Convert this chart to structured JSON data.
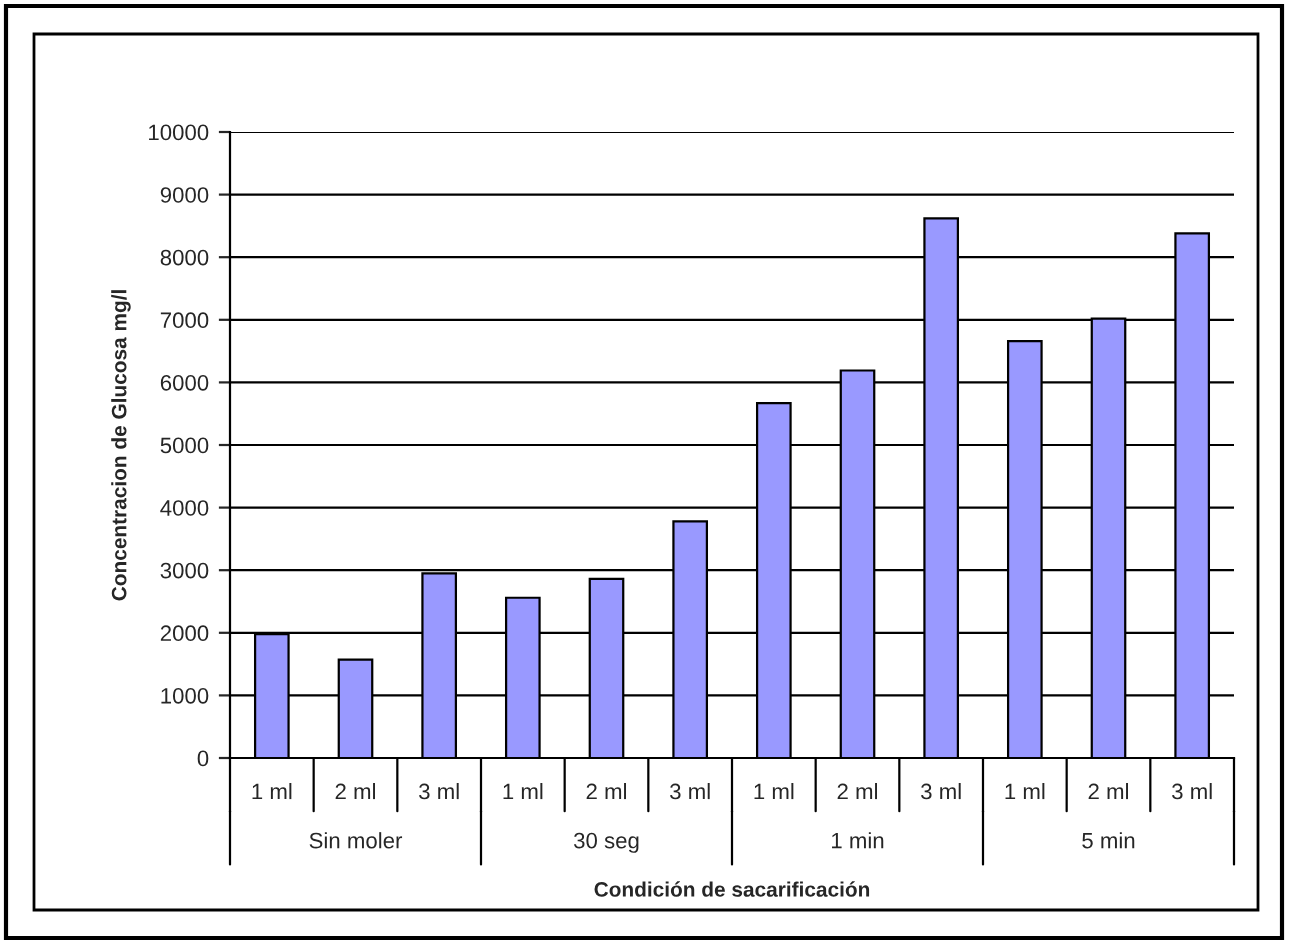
{
  "chart_data": {
    "type": "bar",
    "xlabel": "Condición de sacarificación",
    "ylabel": "Concentracion de Glucosa mg/l",
    "categories": [
      "1 ml",
      "2 ml",
      "3 ml",
      "1 ml",
      "2 ml",
      "3 ml",
      "1 ml",
      "2 ml",
      "3 ml",
      "1 ml",
      "2 ml",
      "3 ml"
    ],
    "values": [
      1980,
      1570,
      2950,
      2560,
      2860,
      3780,
      5670,
      6190,
      8620,
      6660,
      7020,
      8380
    ],
    "color": "#9999ff",
    "ylim": [
      0,
      10000
    ],
    "yticks": [
      0,
      1000,
      2000,
      3000,
      4000,
      5000,
      6000,
      7000,
      8000,
      9000,
      10000
    ],
    "grid": "y",
    "annotations": [
      "Sin moler",
      "30 seg",
      "1 min",
      "5 min"
    ]
  }
}
